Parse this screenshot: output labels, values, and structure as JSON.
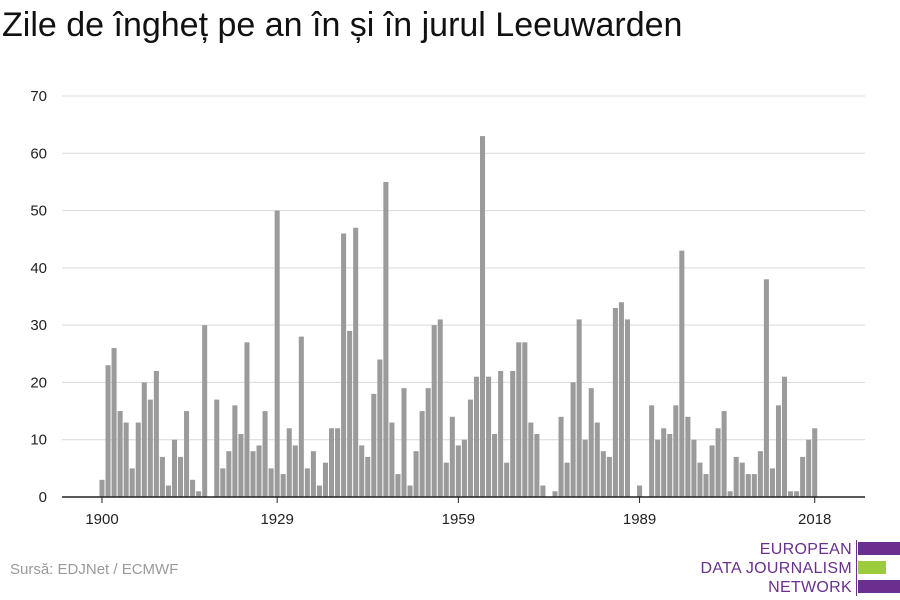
{
  "title": "Zile de îngheț pe an în și în jurul Leeuwarden",
  "source": "Sursă: EDJNet / ECMWF",
  "logo": {
    "lines": [
      "EUROPEAN",
      "DATA JOURNALISM",
      "NETWORK"
    ],
    "colors": {
      "purple": "#6a2f8f",
      "green": "#9ccb3b"
    }
  },
  "chart_data": {
    "type": "bar",
    "title": "Zile de îngheț pe an în și în jurul Leeuwarden",
    "xlabel": "",
    "ylabel": "",
    "ylim": [
      0,
      70
    ],
    "yticks": [
      0,
      10,
      20,
      30,
      40,
      50,
      60,
      70
    ],
    "xticks": [
      1900,
      1929,
      1959,
      1989,
      2018
    ],
    "xlim": [
      1898,
      2020
    ],
    "grid": true,
    "bar_color": "#9b9b9b",
    "series": [
      {
        "x": [
          1900,
          1901,
          1902,
          1903,
          1904,
          1905,
          1906,
          1907,
          1908,
          1909,
          1910,
          1911,
          1912,
          1913,
          1914,
          1915,
          1916,
          1917,
          1918,
          1919,
          1920,
          1921,
          1922,
          1923,
          1924,
          1925,
          1926,
          1927,
          1928,
          1929,
          1930,
          1931,
          1932,
          1933,
          1934,
          1935,
          1936,
          1937,
          1938,
          1939,
          1940,
          1941,
          1942,
          1943,
          1944,
          1945,
          1946,
          1947,
          1948,
          1949,
          1950,
          1951,
          1952,
          1953,
          1954,
          1955,
          1956,
          1957,
          1958,
          1959,
          1960,
          1961,
          1962,
          1963,
          1964,
          1965,
          1966,
          1967,
          1968,
          1969,
          1970,
          1971,
          1972,
          1973,
          1974,
          1975,
          1976,
          1977,
          1978,
          1979,
          1980,
          1981,
          1982,
          1983,
          1984,
          1985,
          1986,
          1987,
          1988,
          1989,
          1990,
          1991,
          1992,
          1993,
          1994,
          1995,
          1996,
          1997,
          1998,
          1999,
          2000,
          2001,
          2002,
          2003,
          2004,
          2005,
          2006,
          2007,
          2008,
          2009,
          2010,
          2011,
          2012,
          2013,
          2014,
          2015,
          2016,
          2017,
          2018
        ],
        "values": [
          3,
          23,
          26,
          15,
          13,
          5,
          13,
          20,
          17,
          22,
          7,
          2,
          10,
          7,
          15,
          3,
          1,
          30,
          0,
          17,
          5,
          8,
          16,
          11,
          27,
          8,
          9,
          15,
          5,
          50,
          4,
          12,
          9,
          28,
          5,
          8,
          2,
          6,
          12,
          12,
          46,
          29,
          47,
          9,
          7,
          18,
          24,
          55,
          13,
          4,
          19,
          2,
          8,
          15,
          19,
          30,
          31,
          6,
          14,
          9,
          10,
          17,
          21,
          63,
          21,
          11,
          22,
          6,
          22,
          27,
          27,
          13,
          11,
          2,
          0,
          1,
          14,
          6,
          20,
          31,
          10,
          19,
          13,
          8,
          7,
          33,
          34,
          31,
          0,
          2,
          0,
          16,
          10,
          12,
          11,
          16,
          43,
          14,
          10,
          6,
          4,
          9,
          12,
          15,
          1,
          7,
          6,
          4,
          4,
          8,
          38,
          5,
          16,
          21,
          1,
          1,
          7,
          10,
          12
        ]
      }
    ]
  }
}
